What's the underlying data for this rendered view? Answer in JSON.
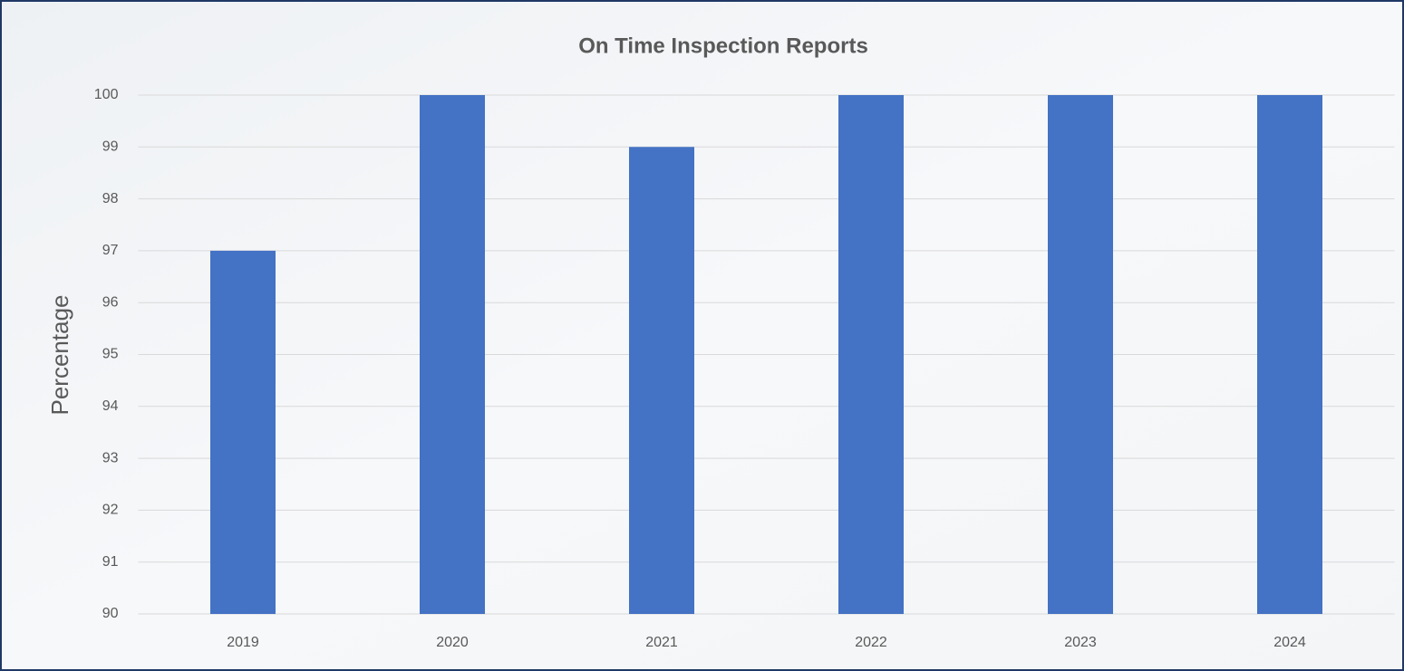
{
  "chart_data": {
    "type": "bar",
    "title": "On Time Inspection Reports",
    "y_label": "Percentage",
    "categories": [
      "2019",
      "2020",
      "2021",
      "2022",
      "2023",
      "2024"
    ],
    "values": [
      97,
      100,
      99,
      100,
      100,
      100
    ],
    "color": "#4472c4",
    "ylim": [
      90,
      100
    ],
    "yticks": [
      90,
      91,
      92,
      93,
      94,
      95,
      96,
      97,
      98,
      99,
      100
    ],
    "grid": true
  }
}
